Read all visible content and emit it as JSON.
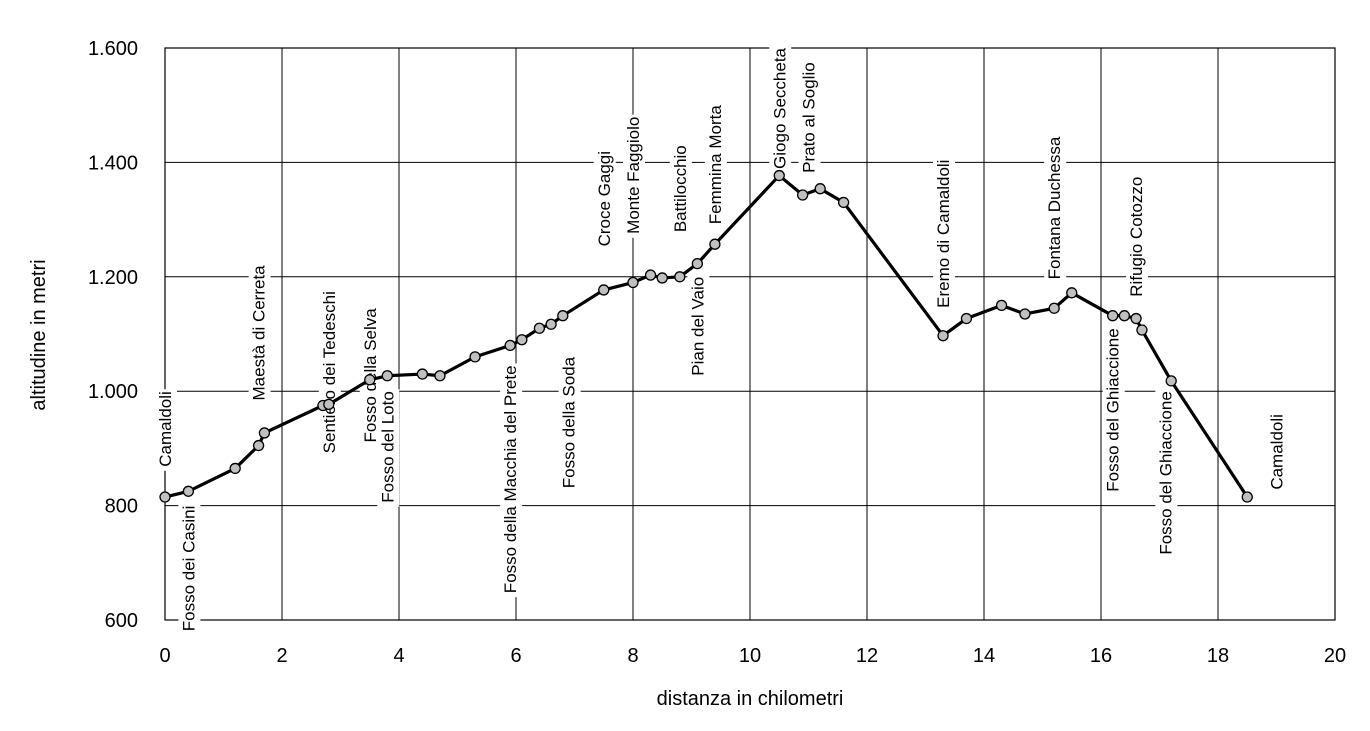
{
  "chart_data": {
    "type": "line",
    "xlabel": "distanza in chilometri",
    "ylabel": "altitudine  in metri",
    "xlim": [
      0,
      20
    ],
    "ylim": [
      600,
      1600
    ],
    "x_ticks": [
      0,
      2,
      4,
      6,
      8,
      10,
      12,
      14,
      16,
      18,
      20
    ],
    "x_tick_labels": [
      "0",
      "2",
      "4",
      "6",
      "8",
      "10",
      "12",
      "14",
      "16",
      "18",
      "20"
    ],
    "y_ticks": [
      600,
      800,
      1000,
      1200,
      1400,
      1600
    ],
    "y_tick_labels": [
      "600",
      "800",
      "1.000",
      "1.200",
      "1.400",
      "1.600"
    ],
    "grid": true,
    "series": [
      {
        "points": [
          [
            0.0,
            815
          ],
          [
            0.4,
            825
          ],
          [
            1.2,
            865
          ],
          [
            1.6,
            905
          ],
          [
            1.7,
            927
          ],
          [
            2.7,
            975
          ],
          [
            2.8,
            977
          ],
          [
            3.5,
            1020
          ],
          [
            3.8,
            1027
          ],
          [
            4.4,
            1030
          ],
          [
            4.7,
            1027
          ],
          [
            5.3,
            1060
          ],
          [
            5.9,
            1080
          ],
          [
            6.1,
            1090
          ],
          [
            6.4,
            1110
          ],
          [
            6.6,
            1117
          ],
          [
            6.8,
            1132
          ],
          [
            7.5,
            1177
          ],
          [
            8.0,
            1190
          ],
          [
            8.3,
            1203
          ],
          [
            8.5,
            1198
          ],
          [
            8.8,
            1200
          ],
          [
            9.1,
            1223
          ],
          [
            9.4,
            1257
          ],
          [
            10.5,
            1377
          ],
          [
            10.9,
            1343
          ],
          [
            11.2,
            1354
          ],
          [
            11.6,
            1330
          ],
          [
            13.3,
            1097
          ],
          [
            13.7,
            1127
          ],
          [
            14.3,
            1150
          ],
          [
            14.7,
            1135
          ],
          [
            15.2,
            1145
          ],
          [
            15.5,
            1172
          ],
          [
            16.2,
            1132
          ],
          [
            16.4,
            1132
          ],
          [
            16.6,
            1127
          ],
          [
            16.7,
            1107
          ],
          [
            17.2,
            1018
          ],
          [
            18.5,
            815
          ]
        ]
      }
    ],
    "annotations": [
      {
        "text": "Camaldoli",
        "x": 0.0,
        "y_top": 1000,
        "place": "above"
      },
      {
        "text": "Fosso dei Casini",
        "x": 0.4,
        "y_top": 800,
        "place": "below"
      },
      {
        "text": "Maestà di Cerreta",
        "x": 1.6,
        "y_top": 1220,
        "place": "above"
      },
      {
        "text": "Sentiero dei Tedeschi",
        "x": 2.8,
        "y_top": 1175,
        "place": "above"
      },
      {
        "text": "Fosso della Selva",
        "x": 3.5,
        "y_top": 1145,
        "place": "above"
      },
      {
        "text": "Fosso del Loto",
        "x": 3.8,
        "y_top": 1000,
        "place": "below"
      },
      {
        "text": "Fosso della Macchia del Prete",
        "x": 5.9,
        "y_top": 1045,
        "place": "below"
      },
      {
        "text": "Fosso della Soda",
        "x": 6.9,
        "y_top": 1060,
        "place": "below"
      },
      {
        "text": "Croce Gaggi",
        "x": 7.5,
        "y_top": 1420,
        "place": "above"
      },
      {
        "text": "Monte Faggiolo",
        "x": 8.0,
        "y_top": 1480,
        "place": "above"
      },
      {
        "text": "Battilocchio",
        "x": 8.8,
        "y_top": 1430,
        "place": "above"
      },
      {
        "text": "Pian del Vaio",
        "x": 9.1,
        "y_top": 1200,
        "place": "below"
      },
      {
        "text": "Femmina Morta",
        "x": 9.4,
        "y_top": 1500,
        "place": "above"
      },
      {
        "text": "Giogo Seccheta",
        "x": 10.5,
        "y_top": 1600,
        "place": "above"
      },
      {
        "text": "Prato al Soglio",
        "x": 11.0,
        "y_top": 1575,
        "place": "above"
      },
      {
        "text": "Eremo di Camaldoli",
        "x": 13.3,
        "y_top": 1405,
        "place": "above"
      },
      {
        "text": "Fontana Duchessa",
        "x": 15.2,
        "y_top": 1445,
        "place": "above"
      },
      {
        "text": "Fosso del Ghiaccione",
        "x": 16.2,
        "y_top": 1110,
        "place": "below"
      },
      {
        "text": "Rifugio Cotozzo",
        "x": 16.6,
        "y_top": 1375,
        "place": "above"
      },
      {
        "text": "Fosso del Ghiaccione",
        "x": 17.1,
        "y_top": 1000,
        "place": "below"
      },
      {
        "text": "Camaldoli",
        "x": 19.0,
        "y_top": 960,
        "place": "above"
      }
    ]
  }
}
